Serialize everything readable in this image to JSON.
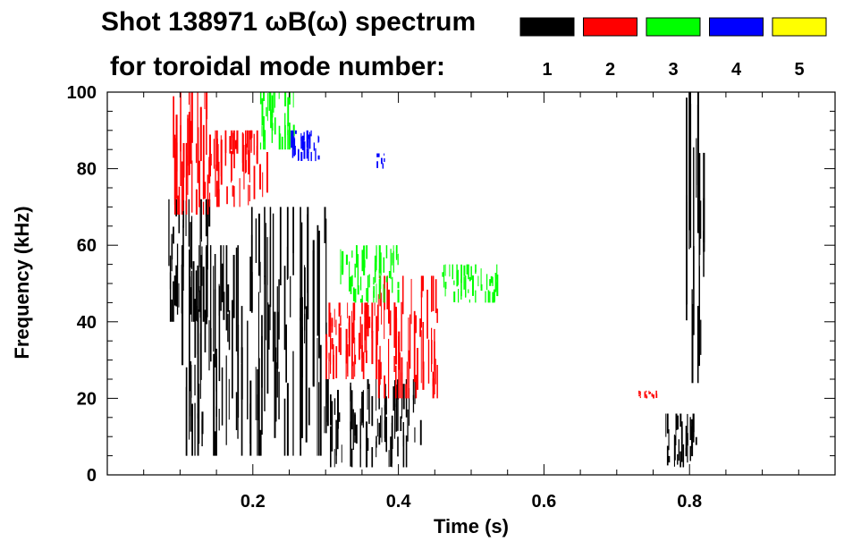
{
  "title_line1": "Shot 138971 ωB(ω) spectrum",
  "title_line2": "for toroidal mode number:",
  "chart_data": {
    "type": "heatmap",
    "title": "Shot 138971 ωB(ω) spectrum for toroidal mode number:",
    "xlabel": "Time (s)",
    "ylabel": "Frequency (kHz)",
    "xlim": [
      0.0,
      1.0
    ],
    "ylim": [
      0,
      100
    ],
    "x_ticks": [
      "0.2",
      "0.4",
      "0.6",
      "0.8"
    ],
    "x_tick_values": [
      0.2,
      0.4,
      0.6,
      0.8
    ],
    "y_ticks": [
      "0",
      "20",
      "40",
      "60",
      "80",
      "100"
    ],
    "y_tick_values": [
      0,
      20,
      40,
      60,
      80,
      100
    ],
    "grid": false,
    "legend_placement": "top-right",
    "series": [
      {
        "name": "1",
        "color": "#000000",
        "regions": [
          {
            "t": [
              0.08,
              0.14
            ],
            "f": [
              40,
              72
            ]
          },
          {
            "t": [
              0.1,
              0.18
            ],
            "f": [
              5,
              60
            ]
          },
          {
            "t": [
              0.18,
              0.3
            ],
            "f": [
              5,
              70
            ]
          },
          {
            "t": [
              0.3,
              0.43
            ],
            "f": [
              2,
              25
            ]
          },
          {
            "t": [
              0.765,
              0.81
            ],
            "f": [
              2,
              16
            ]
          },
          {
            "t": [
              0.795,
              0.82
            ],
            "f": [
              24,
              100
            ]
          }
        ]
      },
      {
        "name": "2",
        "color": "#ff0000",
        "regions": [
          {
            "t": [
              0.09,
              0.14
            ],
            "f": [
              68,
              100
            ]
          },
          {
            "t": [
              0.14,
              0.22
            ],
            "f": [
              70,
              90
            ]
          },
          {
            "t": [
              0.3,
              0.38
            ],
            "f": [
              25,
              45
            ]
          },
          {
            "t": [
              0.37,
              0.46
            ],
            "f": [
              20,
              52
            ]
          },
          {
            "t": [
              0.73,
              0.76
            ],
            "f": [
              20,
              22
            ]
          }
        ]
      },
      {
        "name": "3",
        "color": "#00ff00",
        "regions": [
          {
            "t": [
              0.21,
              0.26
            ],
            "f": [
              85,
              100
            ]
          },
          {
            "t": [
              0.32,
              0.4
            ],
            "f": [
              45,
              60
            ]
          },
          {
            "t": [
              0.46,
              0.54
            ],
            "f": [
              45,
              55
            ]
          }
        ]
      },
      {
        "name": "4",
        "color": "#0000ff",
        "regions": [
          {
            "t": [
              0.25,
              0.29
            ],
            "f": [
              82,
              90
            ]
          },
          {
            "t": [
              0.37,
              0.38
            ],
            "f": [
              80,
              84
            ]
          }
        ]
      },
      {
        "name": "5",
        "color": "#ffff00",
        "regions": []
      }
    ]
  }
}
